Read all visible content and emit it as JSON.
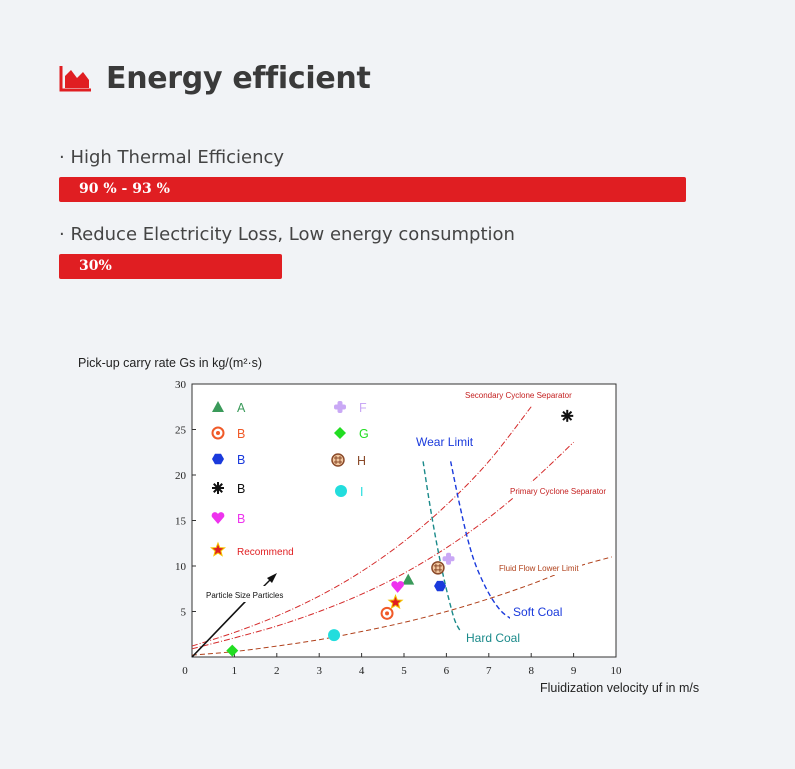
{
  "header": {
    "title": "Energy efficient",
    "accent_color": "#e01e22",
    "icon": "area-chart-icon"
  },
  "features": [
    {
      "label": "· High Thermal Efficiency",
      "value_text": "90 % - 93 %",
      "fill": 0.845
    },
    {
      "label": "· Reduce Electricity Loss, Low energy consumption",
      "value_text": "30%",
      "fill": 0.3
    }
  ],
  "chart_data": {
    "type": "scatter",
    "title": "",
    "ylabel": "Pick-up carry rate Gs in kg/(m²·s)",
    "xlabel": "Fluidization velocity  uf in m/s",
    "xlim": [
      0,
      10
    ],
    "ylim": [
      0,
      30
    ],
    "xticks": [
      "0",
      "1",
      "2",
      "3",
      "4",
      "5",
      "6",
      "7",
      "8",
      "9",
      "10"
    ],
    "yticks": [
      "5",
      "10",
      "15",
      "20",
      "25",
      "30"
    ],
    "grid": false,
    "legend_position": "top-left",
    "legend": [
      {
        "label": "A",
        "marker": "triangle",
        "color": "#3a9a5a"
      },
      {
        "label": "B",
        "marker": "ring",
        "color": "#f05a28"
      },
      {
        "label": "B",
        "marker": "hexagon",
        "color": "#1a3adc"
      },
      {
        "label": "B",
        "marker": "burst",
        "color": "#111111"
      },
      {
        "label": "B",
        "marker": "heart",
        "color": "#ee33ee"
      },
      {
        "label": "Recommend",
        "marker": "star",
        "color": "#e01e22"
      },
      {
        "label": "F",
        "marker": "cross",
        "color": "#c9a8f5"
      },
      {
        "label": "G",
        "marker": "diamond",
        "color": "#22dd22"
      },
      {
        "label": "H",
        "marker": "checker",
        "color": "#8a4a2a"
      },
      {
        "label": "I",
        "marker": "circle",
        "color": "#22dddd"
      }
    ],
    "points": [
      {
        "series": "A",
        "x": 5.1,
        "y": 8.5
      },
      {
        "series": "B",
        "x": 4.6,
        "y": 4.8
      },
      {
        "series": "B",
        "x": 5.85,
        "y": 7.8
      },
      {
        "series": "B",
        "x": 8.85,
        "y": 26.5
      },
      {
        "series": "B",
        "x": 4.85,
        "y": 7.7
      },
      {
        "series": "Recommend",
        "x": 4.8,
        "y": 6.0
      },
      {
        "series": "F",
        "x": 6.05,
        "y": 10.8
      },
      {
        "series": "G",
        "x": 0.95,
        "y": 0.7
      },
      {
        "series": "H",
        "x": 5.8,
        "y": 9.8
      },
      {
        "series": "I",
        "x": 3.35,
        "y": 2.4
      }
    ],
    "curves": [
      {
        "label": "Secondary Cyclone Separator",
        "color": "#d42a2a",
        "x": [
          0,
          1,
          2,
          3,
          4,
          5,
          6,
          7,
          8
        ],
        "y": [
          1.2,
          2.7,
          4.5,
          6.7,
          9.4,
          12.7,
          16.7,
          21.5,
          27.5
        ]
      },
      {
        "label": "Primary Cyclone Separator",
        "color": "#d42a2a",
        "x": [
          0,
          1,
          2,
          3,
          4,
          5,
          6,
          7,
          8,
          9
        ],
        "y": [
          0.9,
          2.1,
          3.4,
          5.0,
          6.9,
          9.2,
          12.0,
          15.3,
          19.2,
          23.6
        ]
      },
      {
        "label": "Fluid Flow Lower Limit",
        "color": "#b0401a",
        "x": [
          0,
          1,
          2,
          3,
          4,
          5,
          6,
          7,
          8,
          9,
          9.9
        ],
        "y": [
          0.2,
          0.6,
          1.2,
          1.9,
          2.8,
          3.8,
          5.0,
          6.4,
          8.0,
          9.8,
          11.0
        ]
      },
      {
        "label": "Wear Limit",
        "color": "#1a3adc",
        "x": [
          6.1,
          6.3,
          6.5,
          6.7,
          7.0,
          7.3,
          7.6
        ],
        "y": [
          21.5,
          17,
          13,
          10,
          7,
          5,
          4
        ]
      },
      {
        "label": "Hard Coal",
        "color": "#1a8a8a",
        "x": [
          5.45,
          5.6,
          5.75,
          5.9,
          6.05,
          6.2,
          6.35
        ],
        "y": [
          21.5,
          17,
          13,
          9.5,
          6.5,
          4,
          2.7
        ]
      },
      {
        "label": "Particle Size Particles",
        "color": "#111111",
        "x": [
          0,
          1.3
        ],
        "y": [
          0,
          6.3
        ]
      }
    ],
    "annotations": [
      {
        "text": "Wear Limit",
        "color": "#1a3adc"
      },
      {
        "text": "Soft Coal",
        "color": "#1a3adc"
      },
      {
        "text": "Hard Coal",
        "color": "#1a8a8a"
      },
      {
        "text": "Secondary Cyclone Separator",
        "color": "#c42020"
      },
      {
        "text": "Primary Cyclone Separator",
        "color": "#c42020"
      },
      {
        "text": "Fluid Flow Lower Limit",
        "color": "#b0401a"
      },
      {
        "text": "Particle Size Particles",
        "color": "#111111"
      }
    ]
  }
}
